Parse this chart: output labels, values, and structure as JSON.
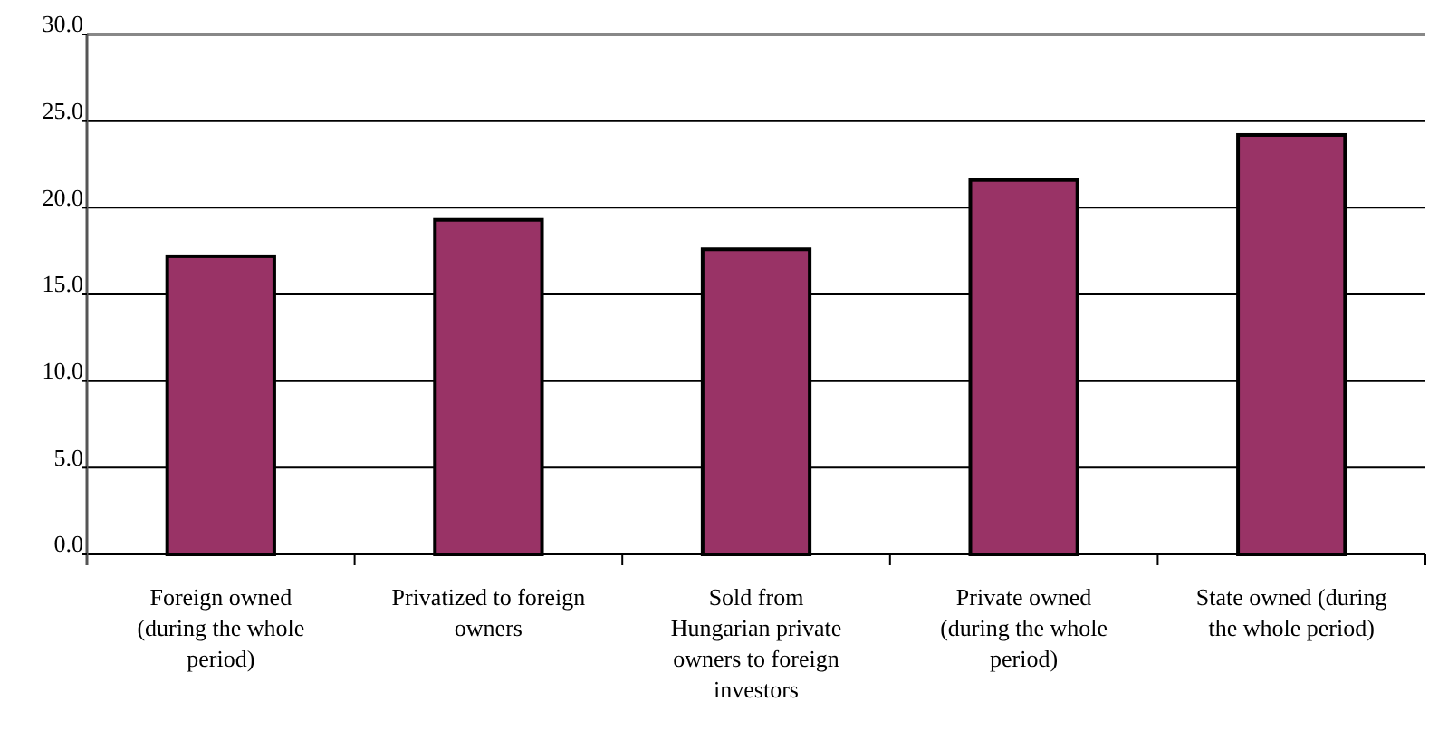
{
  "chart_data": {
    "type": "bar",
    "categories": [
      "Foreign owned (during the whole period)",
      "Privatized to foreign owners",
      "Sold from Hungarian private owners to foreign investors",
      "Private owned (during the whole period)",
      "State owned (during the whole period)"
    ],
    "values": [
      17.2,
      19.3,
      17.6,
      21.6,
      24.2
    ],
    "color": "#993366",
    "ylim": [
      0,
      30
    ],
    "yticks": [
      {
        "value": 0,
        "label": "0.0"
      },
      {
        "value": 5,
        "label": "5.0"
      },
      {
        "value": 10,
        "label": "10.0"
      },
      {
        "value": 15,
        "label": "15.0"
      },
      {
        "value": 20,
        "label": "20.0"
      },
      {
        "value": 25,
        "label": "25.0"
      },
      {
        "value": 30,
        "label": "30.0"
      }
    ],
    "grid": "y"
  }
}
